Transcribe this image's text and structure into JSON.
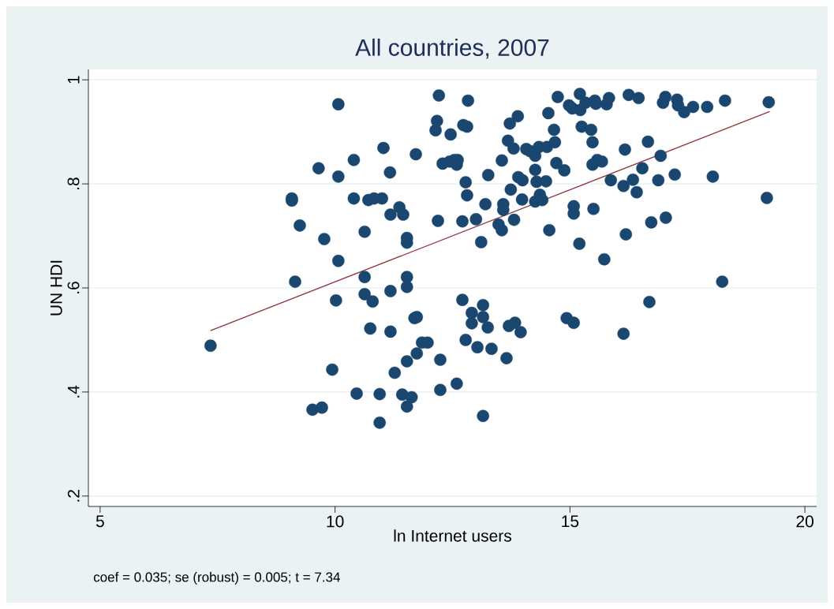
{
  "chart_data": {
    "type": "scatter",
    "title": "All countries, 2007",
    "xlabel": "ln Internet users",
    "ylabel": "UN HDI",
    "annotations": [
      "coef = 0.035;  se (robust) = 0.005;  t = 7.34"
    ],
    "xlim": [
      4.75,
      20.25
    ],
    "ylim": [
      0.18,
      1.02
    ],
    "xticks": [
      5,
      10,
      15,
      20
    ],
    "yticks": [
      {
        "value": 0.2,
        "label": ".2"
      },
      {
        "value": 0.4,
        "label": ".4"
      },
      {
        "value": 0.6,
        "label": ".6"
      },
      {
        "value": 0.8,
        "label": ".8"
      },
      {
        "value": 1,
        "label": "1"
      }
    ],
    "grid": "y",
    "series": [
      {
        "marker": "circle",
        "color": "#1a476f",
        "x": [
          7.35,
          9.08,
          9.08,
          9.15,
          9.25,
          9.52,
          9.72,
          9.65,
          9.77,
          9.94,
          10.02,
          10.07,
          10.07,
          10.07,
          10.4,
          10.4,
          10.46,
          10.63,
          10.63,
          10.63,
          10.71,
          10.83,
          11.0,
          10.75,
          10.8,
          10.95,
          10.95,
          11.03,
          11.17,
          11.18,
          11.18,
          11.18,
          11.27,
          11.37,
          11.43,
          11.45,
          11.53,
          11.53,
          11.53,
          11.53,
          11.53,
          11.53,
          11.63,
          11.69,
          11.74,
          11.74,
          11.72,
          11.85,
          11.97,
          12.14,
          12.17,
          12.21,
          12.19,
          12.24,
          12.24,
          12.29,
          12.44,
          12.46,
          12.54,
          12.59,
          12.61,
          12.59,
          12.71,
          12.71,
          12.73,
          12.78,
          12.81,
          12.81,
          12.83,
          12.78,
          12.91,
          12.91,
          13.0,
          13.03,
          13.11,
          13.15,
          13.15,
          13.15,
          13.2,
          13.25,
          13.26,
          13.33,
          13.48,
          13.55,
          13.55,
          13.58,
          13.58,
          13.65,
          13.68,
          13.72,
          13.89,
          13.8,
          13.74,
          13.81,
          13.9,
          13.99,
          13.98,
          13.7,
          13.83,
          13.95,
          14.07,
          14.15,
          14.26,
          14.34,
          14.51,
          14.68,
          14.26,
          14.29,
          14.49,
          14.36,
          14.26,
          14.41,
          14.54,
          14.66,
          14.74,
          14.71,
          14.88,
          14.56,
          14.93,
          15.08,
          15.08,
          15.08,
          15.2,
          14.98,
          15.05,
          15.22,
          15.21,
          15.25,
          15.33,
          15.53,
          15.55,
          15.78,
          15.83,
          16.25,
          16.46,
          16.98,
          17.03,
          17.28,
          17.3,
          17.43,
          17.62,
          17.92,
          18.3,
          19.23,
          15.45,
          15.48,
          16.17,
          16.66,
          15.48,
          15.58,
          15.68,
          16.93,
          16.54,
          15.87,
          16.14,
          16.34,
          16.42,
          16.88,
          17.23,
          18.04,
          19.19,
          15.5,
          16.73,
          17.04,
          16.19,
          15.73,
          18.24,
          16.69,
          16.14
        ],
        "values": [
          0.489,
          0.772,
          0.768,
          0.612,
          0.72,
          0.366,
          0.37,
          0.83,
          0.694,
          0.443,
          0.576,
          0.953,
          0.814,
          0.652,
          0.846,
          0.772,
          0.397,
          0.708,
          0.621,
          0.588,
          0.769,
          0.772,
          0.772,
          0.522,
          0.574,
          0.341,
          0.396,
          0.869,
          0.822,
          0.741,
          0.594,
          0.516,
          0.437,
          0.755,
          0.395,
          0.741,
          0.696,
          0.687,
          0.621,
          0.602,
          0.459,
          0.372,
          0.39,
          0.542,
          0.544,
          0.474,
          0.857,
          0.495,
          0.495,
          0.903,
          0.921,
          0.97,
          0.729,
          0.462,
          0.404,
          0.839,
          0.843,
          0.895,
          0.846,
          0.837,
          0.846,
          0.416,
          0.577,
          0.728,
          0.913,
          0.803,
          0.91,
          0.778,
          0.96,
          0.5,
          0.552,
          0.532,
          0.732,
          0.486,
          0.688,
          0.567,
          0.544,
          0.354,
          0.761,
          0.524,
          0.817,
          0.483,
          0.722,
          0.711,
          0.845,
          0.761,
          0.75,
          0.465,
          0.883,
          0.916,
          0.93,
          0.868,
          0.789,
          0.731,
          0.813,
          0.807,
          0.77,
          0.527,
          0.533,
          0.515,
          0.867,
          0.863,
          0.854,
          0.871,
          0.871,
          0.88,
          0.827,
          0.804,
          0.805,
          0.779,
          0.766,
          0.769,
          0.936,
          0.904,
          0.967,
          0.84,
          0.826,
          0.711,
          0.542,
          0.533,
          0.757,
          0.743,
          0.685,
          0.951,
          0.945,
          0.942,
          0.973,
          0.91,
          0.956,
          0.96,
          0.954,
          0.953,
          0.965,
          0.971,
          0.965,
          0.956,
          0.967,
          0.962,
          0.951,
          0.938,
          0.948,
          0.948,
          0.96,
          0.957,
          0.904,
          0.88,
          0.866,
          0.881,
          0.837,
          0.846,
          0.843,
          0.854,
          0.83,
          0.807,
          0.796,
          0.808,
          0.784,
          0.807,
          0.818,
          0.814,
          0.773,
          0.752,
          0.726,
          0.735,
          0.703,
          0.655,
          0.612,
          0.573,
          0.512
        ]
      },
      {
        "type": "line",
        "marker": "none",
        "color": "#90353b",
        "x": [
          7.35,
          19.25
        ],
        "values": [
          0.518,
          0.939
        ]
      }
    ]
  }
}
